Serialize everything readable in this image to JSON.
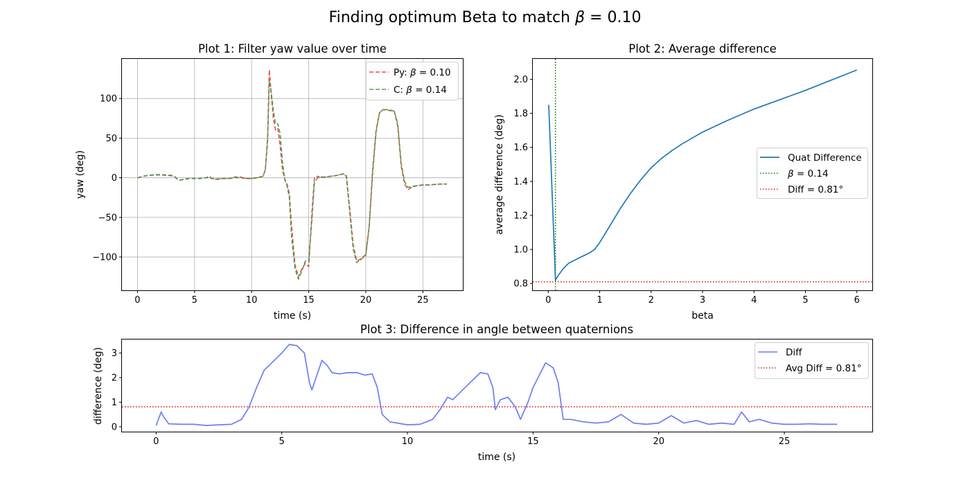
{
  "figure": {
    "suptitle_text": "Finding optimum Beta to match ",
    "suptitle_beta": "β",
    "suptitle_value": " = 0.10"
  },
  "chart_data": [
    {
      "id": "plot1",
      "type": "line",
      "title": "Plot 1: Filter yaw value over time",
      "xlabel": "time (s)",
      "ylabel": "yaw (deg)",
      "xlim": [
        -1.36,
        28.5
      ],
      "ylim": [
        -142,
        150
      ],
      "xticks": [
        0,
        5,
        10,
        15,
        20,
        25
      ],
      "xtick_labels": [
        "0",
        "5",
        "10",
        "15",
        "20",
        "25"
      ],
      "yticks": [
        -100,
        -50,
        0,
        50,
        100
      ],
      "ytick_labels": [
        "−100",
        "−50",
        "0",
        "50",
        "100"
      ],
      "grid": true,
      "legend_placement": "upper right",
      "series": [
        {
          "name_prefix": "Py: ",
          "name_beta": "β",
          "name_value": " = 0.10",
          "color": "#e8363b",
          "style": "dashed",
          "x": [
            0,
            0.5,
            1,
            1.5,
            2,
            2.5,
            3,
            3.3,
            3.5,
            3.8,
            4,
            4.5,
            5,
            5.5,
            6,
            6.3,
            6.5,
            7,
            7.5,
            8,
            8.5,
            9,
            9.5,
            10,
            10.5,
            11,
            11.2,
            11.4,
            11.55,
            11.7,
            11.9,
            12.1,
            12.3,
            12.5,
            12.7,
            12.9,
            13.1,
            13.3,
            13.5,
            13.8,
            14.1,
            14.4,
            14.7,
            15,
            15.3,
            15.5,
            15.8,
            16,
            16.5,
            17,
            17.5,
            18,
            18.3,
            18.6,
            18.9,
            19.2,
            19.5,
            20,
            20.3,
            20.6,
            20.9,
            21.2,
            21.5,
            22,
            22.5,
            22.8,
            23.1,
            23.4,
            23.7,
            24,
            24.5,
            25,
            25.5,
            26,
            26.5,
            27.1
          ],
          "y": [
            0,
            2,
            3,
            4,
            4,
            3.5,
            3,
            1,
            -2,
            -3,
            -2,
            -1,
            -1,
            -1,
            0,
            2,
            -1,
            -2,
            -1,
            -1,
            1,
            1,
            -1,
            -1,
            0,
            2,
            10,
            50,
            136,
            108,
            75,
            60,
            62,
            40,
            10,
            -2,
            -8,
            -20,
            -60,
            -110,
            -125,
            -115,
            -108,
            -112,
            -40,
            0,
            2,
            0,
            1,
            2,
            3,
            5,
            3,
            -40,
            -85,
            -105,
            -103,
            -97,
            -60,
            10,
            60,
            82,
            86,
            85,
            84,
            65,
            15,
            -8,
            -15,
            -12,
            -10,
            -9,
            -9,
            -8.5,
            -8,
            -8
          ]
        },
        {
          "name_prefix": "C: ",
          "name_beta": "β",
          "name_value": " = 0.14",
          "color": "#3a9a43",
          "style": "dashed",
          "x": [
            0,
            0.5,
            1,
            1.5,
            2,
            2.5,
            3,
            3.3,
            3.5,
            3.8,
            4,
            4.5,
            5,
            5.5,
            6,
            6.3,
            6.5,
            7,
            7.5,
            8,
            8.5,
            9,
            9.5,
            10,
            10.5,
            11,
            11.2,
            11.4,
            11.55,
            11.7,
            11.9,
            12.1,
            12.3,
            12.5,
            12.7,
            12.9,
            13.1,
            13.3,
            13.5,
            13.8,
            14.1,
            14.4,
            14.7,
            15,
            15.3,
            15.5,
            15.8,
            16,
            16.5,
            17,
            17.5,
            18,
            18.3,
            18.6,
            18.9,
            19.2,
            19.5,
            20,
            20.3,
            20.6,
            20.9,
            21.2,
            21.5,
            22,
            22.5,
            22.8,
            23.1,
            23.4,
            23.7,
            24,
            24.5,
            25,
            25.5,
            26,
            26.5,
            27.1
          ],
          "y": [
            0,
            2,
            3,
            3.5,
            3.5,
            3,
            2.5,
            1,
            -2,
            -3,
            -2,
            -1,
            -1,
            -1,
            0,
            0,
            -1,
            -1.5,
            -1,
            -1,
            0,
            0,
            -1,
            -1,
            0,
            2,
            10,
            45,
            122,
            110,
            85,
            68,
            68,
            55,
            20,
            -2,
            -10,
            -25,
            -75,
            -115,
            -128,
            -118,
            -105,
            -104,
            -50,
            -5,
            0,
            1,
            1,
            2,
            3,
            5,
            2,
            -45,
            -90,
            -107,
            -104,
            -98,
            -62,
            5,
            58,
            82,
            86,
            86,
            84,
            68,
            18,
            -5,
            -12,
            -11,
            -10,
            -9,
            -9,
            -8.5,
            -8,
            -8
          ]
        }
      ]
    },
    {
      "id": "plot2",
      "type": "line",
      "title": "Plot 2: Average difference",
      "xlabel": "beta",
      "ylabel": "average difference (deg)",
      "xlim": [
        -0.3,
        6.3
      ],
      "ylim": [
        0.76,
        2.12
      ],
      "xticks": [
        0,
        1,
        2,
        3,
        4,
        5,
        6
      ],
      "xtick_labels": [
        "0",
        "1",
        "2",
        "3",
        "4",
        "5",
        "6"
      ],
      "yticks": [
        0.8,
        1.0,
        1.2,
        1.4,
        1.6,
        1.8,
        2.0
      ],
      "ytick_labels": [
        "0.8",
        "1.0",
        "1.2",
        "1.4",
        "1.6",
        "1.8",
        "2.0"
      ],
      "grid": false,
      "legend_placement": "center right",
      "series": [
        {
          "name": "Quat Difference",
          "color": "#1f77b4",
          "style": "solid",
          "x": [
            0.01,
            0.14,
            0.2,
            0.3,
            0.4,
            0.5,
            0.6,
            0.7,
            0.8,
            0.9,
            1.0,
            1.2,
            1.4,
            1.6,
            1.8,
            2.0,
            2.2,
            2.4,
            2.6,
            2.8,
            3.0,
            3.5,
            4.0,
            4.5,
            5.0,
            5.5,
            6.0
          ],
          "y": [
            1.85,
            0.82,
            0.85,
            0.89,
            0.92,
            0.935,
            0.95,
            0.965,
            0.98,
            1.0,
            1.04,
            1.14,
            1.24,
            1.33,
            1.41,
            1.48,
            1.535,
            1.58,
            1.62,
            1.655,
            1.69,
            1.76,
            1.825,
            1.88,
            1.935,
            1.995,
            2.055
          ]
        }
      ],
      "vline": {
        "x": 0.14,
        "color": "#007a00",
        "style": "dotted",
        "name_beta": "β",
        "name_value": " = 0.14"
      },
      "hline": {
        "y": 0.81,
        "color": "#e51b1b",
        "style": "dotted",
        "name": "Diff = 0.81°"
      }
    },
    {
      "id": "plot3",
      "type": "line",
      "title": "Plot 3: Difference in angle between quaternions",
      "xlabel": "time (s)",
      "ylabel": "difference (deg)",
      "xlim": [
        -1.36,
        28.5
      ],
      "ylim": [
        -0.2,
        3.55
      ],
      "xticks": [
        0,
        5,
        10,
        15,
        20,
        25
      ],
      "xtick_labels": [
        "0",
        "5",
        "10",
        "15",
        "20",
        "25"
      ],
      "yticks": [
        0,
        1,
        2,
        3
      ],
      "ytick_labels": [
        "0",
        "1",
        "2",
        "3"
      ],
      "grid": false,
      "legend_placement": "upper right",
      "series": [
        {
          "name": "Diff",
          "color": "#6b7ff0",
          "style": "solid",
          "x": [
            0,
            0.2,
            0.3,
            0.5,
            1,
            1.5,
            2,
            2.5,
            3,
            3.4,
            3.7,
            4,
            4.3,
            4.6,
            5,
            5.3,
            5.6,
            5.9,
            6.1,
            6.2,
            6.4,
            6.6,
            6.8,
            7,
            7.3,
            7.6,
            8,
            8.3,
            8.6,
            8.8,
            9,
            9.3,
            9.6,
            10,
            10.5,
            11,
            11.3,
            11.6,
            11.8,
            12,
            12.3,
            12.6,
            12.9,
            13.2,
            13.4,
            13.5,
            13.7,
            14,
            14.3,
            14.5,
            14.8,
            15,
            15.3,
            15.5,
            15.8,
            16,
            16.2,
            16.5,
            17,
            17.5,
            18,
            18.5,
            19,
            19.5,
            20,
            20.5,
            21,
            21.5,
            22,
            22.5,
            23,
            23.3,
            23.6,
            24,
            24.5,
            25,
            25.5,
            26,
            26.5,
            27.1
          ],
          "y": [
            0.05,
            0.6,
            0.4,
            0.12,
            0.1,
            0.1,
            0.05,
            0.08,
            0.1,
            0.3,
            0.8,
            1.6,
            2.3,
            2.6,
            3.0,
            3.35,
            3.3,
            3.0,
            1.8,
            1.5,
            2.1,
            2.7,
            2.5,
            2.2,
            2.15,
            2.2,
            2.2,
            2.1,
            2.15,
            1.6,
            0.5,
            0.2,
            0.15,
            0.08,
            0.1,
            0.3,
            0.7,
            1.2,
            1.1,
            1.3,
            1.6,
            1.9,
            2.2,
            2.15,
            1.6,
            0.7,
            1.1,
            1.2,
            0.8,
            0.3,
            1.0,
            1.6,
            2.2,
            2.6,
            2.4,
            1.8,
            0.3,
            0.3,
            0.2,
            0.15,
            0.2,
            0.5,
            0.15,
            0.1,
            0.15,
            0.45,
            0.15,
            0.25,
            0.1,
            0.15,
            0.1,
            0.6,
            0.2,
            0.3,
            0.15,
            0.1,
            0.1,
            0.12,
            0.1,
            0.1
          ]
        }
      ],
      "hline": {
        "y": 0.81,
        "color": "#e51b1b",
        "style": "dotted",
        "name": "Avg Diff = 0.81°"
      }
    }
  ]
}
